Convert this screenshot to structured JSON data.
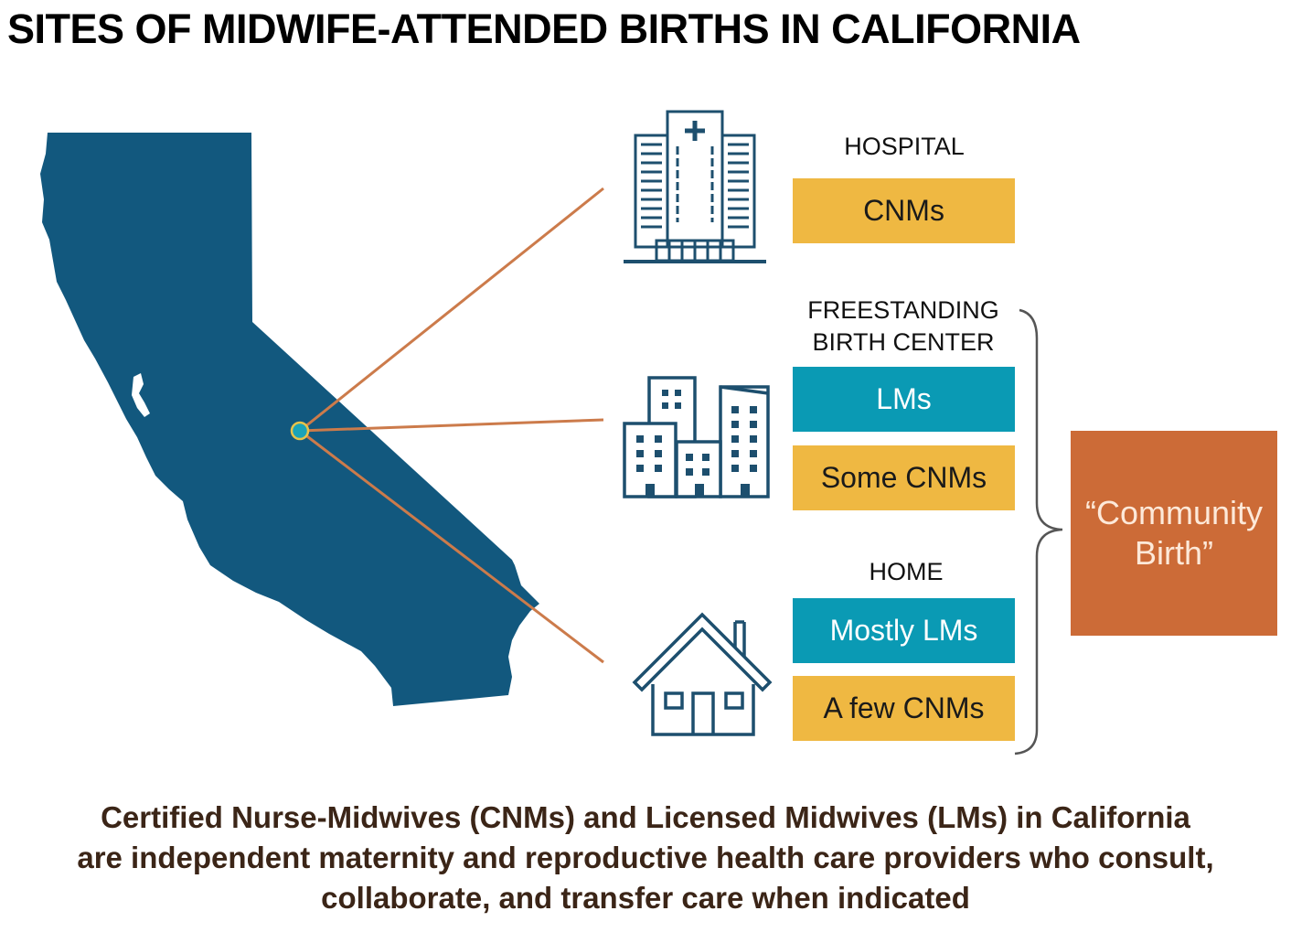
{
  "title": "SITES OF MIDWIFE-ATTENDED BIRTHS IN CALIFORNIA",
  "colors": {
    "map": "#12587e",
    "connector": "#cc7b4b",
    "marker": "#1aa3b8",
    "icon": "#1d4f6e",
    "gold": "#efb842",
    "teal": "#0a9ab4",
    "community": "#cc6b37",
    "footer_text": "#3b2517"
  },
  "map": {
    "region": "California",
    "marker_icon": "location-dot-icon"
  },
  "sites": [
    {
      "icon": "hospital-icon",
      "label": "HOSPITAL",
      "providers": [
        {
          "text": "CNMs",
          "color": "gold"
        }
      ]
    },
    {
      "icon": "birth-center-icon",
      "label": "FREESTANDING BIRTH CENTER",
      "label_lines": [
        "FREESTANDING",
        "BIRTH CENTER"
      ],
      "providers": [
        {
          "text": "LMs",
          "color": "teal"
        },
        {
          "text": "Some CNMs",
          "color": "gold"
        }
      ]
    },
    {
      "icon": "home-icon",
      "label": "HOME",
      "providers": [
        {
          "text": "Mostly LMs",
          "color": "teal"
        },
        {
          "text": "A few CNMs",
          "color": "gold"
        }
      ]
    }
  ],
  "community_birth": {
    "label": "“Community Birth”",
    "lines": [
      "“Community",
      "Birth”"
    ]
  },
  "footer": {
    "lines": [
      "Certified Nurse-Midwives (CNMs) and Licensed Midwives (LMs) in California",
      "are independent maternity and reproductive health care providers who consult,",
      "collaborate, and transfer care when indicated"
    ]
  }
}
